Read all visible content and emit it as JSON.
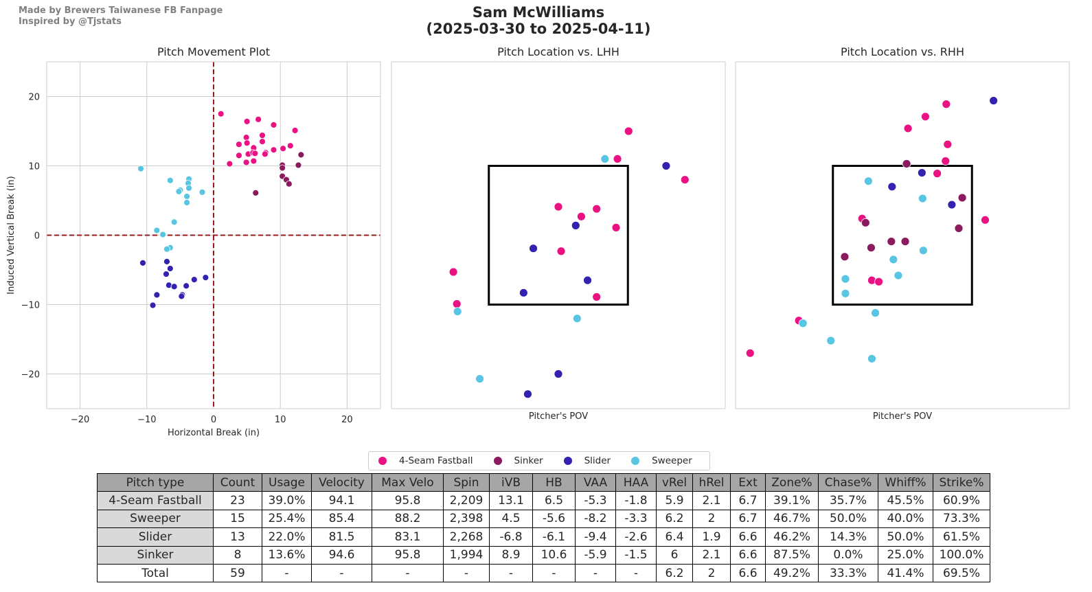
{
  "credits": [
    "Made by Brewers Taiwanese FB Fanpage",
    "Inspired by @Tjstats"
  ],
  "title": {
    "line1": "Sam McWilliams",
    "line2": "(2025-03-30 to 2025-04-11)"
  },
  "colors": {
    "4-Seam Fastball": "#ea1283",
    "Sinker": "#8c1a5e",
    "Slider": "#3322b0",
    "Sweeper": "#58c5e3"
  },
  "legend": [
    "4-Seam Fastball",
    "Sinker",
    "Slider",
    "Sweeper"
  ],
  "chart_data": [
    {
      "type": "scatter",
      "title": "Pitch Movement Plot",
      "xlabel": "Horizontal Break (in)",
      "ylabel": "Induced Vertical Break (in)",
      "xlim": [
        -25,
        25
      ],
      "ylim": [
        -25,
        25
      ],
      "xticks": [
        -20,
        -10,
        0,
        10,
        20
      ],
      "yticks": [
        -20,
        -10,
        0,
        10,
        20
      ],
      "xtick_labels": [
        "−20",
        "−10",
        "0",
        "10",
        "20"
      ],
      "ytick_labels": [
        "−20",
        "−10",
        "0",
        "10",
        "20"
      ],
      "grid": true,
      "series": [
        {
          "name": "4-Seam Fastball",
          "points": [
            [
              1.1,
              17.5
            ],
            [
              5.0,
              16.4
            ],
            [
              6.7,
              16.7
            ],
            [
              9.0,
              15.9
            ],
            [
              12.2,
              15.1
            ],
            [
              4.9,
              14.1
            ],
            [
              7.3,
              14.4
            ],
            [
              3.8,
              13.1
            ],
            [
              5.0,
              13.3
            ],
            [
              7.3,
              13.5
            ],
            [
              6.0,
              12.6
            ],
            [
              11.5,
              12.9
            ],
            [
              9.0,
              12.3
            ],
            [
              10.4,
              12.5
            ],
            [
              3.8,
              11.5
            ],
            [
              5.2,
              11.7
            ],
            [
              5.9,
              11.9
            ],
            [
              7.8,
              11.9
            ],
            [
              7.7,
              11.7
            ],
            [
              2.4,
              10.3
            ],
            [
              4.9,
              10.5
            ],
            [
              6.0,
              10.7
            ],
            [
              6.2,
              11.8
            ]
          ]
        },
        {
          "name": "Sinker",
          "points": [
            [
              13.1,
              11.6
            ],
            [
              10.3,
              10.1
            ],
            [
              12.7,
              10.1
            ],
            [
              10.3,
              9.7
            ],
            [
              10.3,
              8.5
            ],
            [
              10.9,
              8.0
            ],
            [
              11.3,
              7.4
            ],
            [
              6.3,
              6.1
            ]
          ]
        },
        {
          "name": "Slider",
          "points": [
            [
              -10.6,
              -4.0
            ],
            [
              -7.0,
              -3.8
            ],
            [
              -6.5,
              -4.8
            ],
            [
              -7.1,
              -5.6
            ],
            [
              -1.2,
              -6.1
            ],
            [
              -2.9,
              -6.4
            ],
            [
              -6.7,
              -7.2
            ],
            [
              -5.9,
              -7.4
            ],
            [
              -4.1,
              -7.3
            ],
            [
              -8.5,
              -8.6
            ],
            [
              -4.7,
              -8.6
            ],
            [
              -4.8,
              -8.8
            ],
            [
              -9.1,
              -10.1
            ]
          ]
        },
        {
          "name": "Sweeper",
          "points": [
            [
              -10.9,
              9.6
            ],
            [
              -6.5,
              7.9
            ],
            [
              -3.7,
              8.1
            ],
            [
              -3.8,
              7.5
            ],
            [
              -3.7,
              6.8
            ],
            [
              -5.0,
              6.5
            ],
            [
              -5.2,
              6.3
            ],
            [
              -1.7,
              6.2
            ],
            [
              -4.0,
              5.6
            ],
            [
              -4.0,
              4.7
            ],
            [
              -5.9,
              1.9
            ],
            [
              -8.5,
              0.7
            ],
            [
              -7.6,
              0.1
            ],
            [
              -6.5,
              -1.8
            ],
            [
              -7.0,
              -2.0
            ]
          ]
        }
      ]
    },
    {
      "type": "scatter",
      "title": "Pitch Location vs. LHH",
      "xlabel": "Pitcher's POV",
      "xlim": [
        -24,
        24
      ],
      "ylim": [
        -25,
        25
      ],
      "strike_zone": [
        -10,
        -10,
        10,
        10
      ],
      "series": [
        {
          "name": "4-Seam Fastball",
          "points": [
            [
              10.1,
              15.0
            ],
            [
              8.5,
              11.0
            ],
            [
              18.2,
              8.0
            ],
            [
              0,
              4.1
            ],
            [
              3.3,
              2.7
            ],
            [
              5.5,
              3.8
            ],
            [
              8.3,
              1.1
            ],
            [
              0.4,
              -2.3
            ],
            [
              -15.1,
              -5.3
            ],
            [
              -14.6,
              -9.9
            ],
            [
              5.5,
              -8.9
            ]
          ]
        },
        {
          "name": "Slider",
          "points": [
            [
              15.5,
              10.0
            ],
            [
              2.5,
              1.4
            ],
            [
              -3.6,
              -1.9
            ],
            [
              4.2,
              -6.5
            ],
            [
              -5.0,
              -8.3
            ],
            [
              0,
              -20.0
            ],
            [
              -4.4,
              -22.9
            ]
          ]
        },
        {
          "name": "Sweeper",
          "points": [
            [
              6.7,
              11.0
            ],
            [
              -14.5,
              -11.0
            ],
            [
              2.7,
              -12.0
            ],
            [
              -11.3,
              -20.7
            ]
          ]
        }
      ]
    },
    {
      "type": "scatter",
      "title": "Pitch Location vs. RHH",
      "xlabel": "Pitcher's POV",
      "xlim": [
        -24,
        24
      ],
      "ylim": [
        -25,
        25
      ],
      "strike_zone": [
        -10,
        -10,
        10,
        10
      ],
      "series": [
        {
          "name": "4-Seam Fastball",
          "points": [
            [
              6.3,
              18.9
            ],
            [
              3.3,
              17.1
            ],
            [
              0.8,
              15.4
            ],
            [
              6.5,
              13.1
            ],
            [
              6.2,
              10.7
            ],
            [
              5.0,
              8.9
            ],
            [
              11.9,
              2.2
            ],
            [
              -5.8,
              2.4
            ],
            [
              -4.4,
              -6.5
            ],
            [
              -3.4,
              -6.7
            ],
            [
              -14.9,
              -12.3
            ],
            [
              -21.9,
              -17.0
            ]
          ]
        },
        {
          "name": "Sinker",
          "points": [
            [
              0.6,
              10.3
            ],
            [
              8.6,
              5.4
            ],
            [
              -5.3,
              1.8
            ],
            [
              8.1,
              1.0
            ],
            [
              -1.6,
              -0.9
            ],
            [
              0.4,
              -0.9
            ],
            [
              -4.5,
              -1.8
            ],
            [
              -8.3,
              -3.1
            ]
          ]
        },
        {
          "name": "Slider",
          "points": [
            [
              13.1,
              19.4
            ],
            [
              2.8,
              9.0
            ],
            [
              -1.5,
              7.0
            ],
            [
              7.1,
              4.4
            ]
          ]
        },
        {
          "name": "Sweeper",
          "points": [
            [
              -4.9,
              7.8
            ],
            [
              2.9,
              5.3
            ],
            [
              3.0,
              -2.2
            ],
            [
              -1.3,
              -3.5
            ],
            [
              -0.6,
              -5.8
            ],
            [
              -8.2,
              -6.3
            ],
            [
              -8.2,
              -8.4
            ],
            [
              -3.9,
              -11.2
            ],
            [
              -14.3,
              -12.7
            ],
            [
              -10.3,
              -15.2
            ],
            [
              -4.4,
              -17.8
            ]
          ]
        }
      ]
    }
  ],
  "table": {
    "headers": [
      "Pitch type",
      "Count",
      "Usage",
      "Velocity",
      "Max Velo",
      "Spin",
      "iVB",
      "HB",
      "VAA",
      "HAA",
      "vRel",
      "hRel",
      "Ext",
      "Zone%",
      "Chase%",
      "Whiff%",
      "Strike%"
    ],
    "rows": [
      [
        "4-Seam Fastball",
        "23",
        "39.0%",
        "94.1",
        "95.8",
        "2,209",
        "13.1",
        "6.5",
        "-5.3",
        "-1.8",
        "5.9",
        "2.1",
        "6.7",
        "39.1%",
        "35.7%",
        "45.5%",
        "60.9%"
      ],
      [
        "Sweeper",
        "15",
        "25.4%",
        "85.4",
        "88.2",
        "2,398",
        "4.5",
        "-5.6",
        "-8.2",
        "-3.3",
        "6.2",
        "2",
        "6.7",
        "46.7%",
        "50.0%",
        "40.0%",
        "73.3%"
      ],
      [
        "Slider",
        "13",
        "22.0%",
        "81.5",
        "83.1",
        "2,268",
        "-6.8",
        "-6.1",
        "-9.4",
        "-2.6",
        "6.4",
        "1.9",
        "6.6",
        "46.2%",
        "14.3%",
        "50.0%",
        "61.5%"
      ],
      [
        "Sinker",
        "8",
        "13.6%",
        "94.6",
        "95.8",
        "1,994",
        "8.9",
        "10.6",
        "-5.9",
        "-1.5",
        "6",
        "2.1",
        "6.6",
        "87.5%",
        "0.0%",
        "25.0%",
        "100.0%"
      ],
      [
        "Total",
        "59",
        "-",
        "-",
        "-",
        "-",
        "-",
        "-",
        "-",
        "-",
        "6.2",
        "2",
        "6.6",
        "49.2%",
        "33.3%",
        "41.4%",
        "69.5%"
      ]
    ]
  }
}
